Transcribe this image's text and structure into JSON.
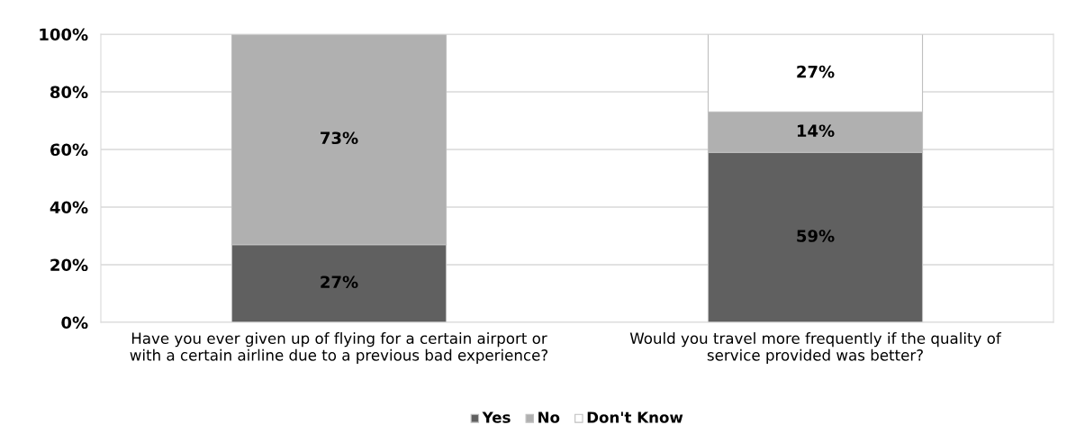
{
  "chart_data": {
    "type": "bar",
    "stacked": true,
    "categories": [
      "Have you ever given up of flying for a certain airport or\nwith a certain airline due to a previous bad experience?",
      "Would you travel more frequently if the quality of\nservice provided was better?"
    ],
    "series": [
      {
        "name": "Yes",
        "color": "#606060",
        "values": [
          27,
          59
        ],
        "value_labels": [
          "27%",
          "59%"
        ]
      },
      {
        "name": "No",
        "color": "#b0b0b0",
        "values": [
          73,
          14
        ],
        "value_labels": [
          "73%",
          "14%"
        ]
      },
      {
        "name": "Don't Know",
        "color": "#ffffff",
        "values": [
          0,
          27
        ],
        "value_labels": [
          null,
          "27%"
        ]
      }
    ],
    "ylim": [
      0,
      100
    ],
    "yticks": [
      {
        "value": 0,
        "label": "0%"
      },
      {
        "value": 20,
        "label": "20%"
      },
      {
        "value": 40,
        "label": "40%"
      },
      {
        "value": 60,
        "label": "60%"
      },
      {
        "value": 80,
        "label": "80%"
      },
      {
        "value": 100,
        "label": "100%"
      }
    ],
    "grid": "y",
    "legend": "bottom"
  }
}
